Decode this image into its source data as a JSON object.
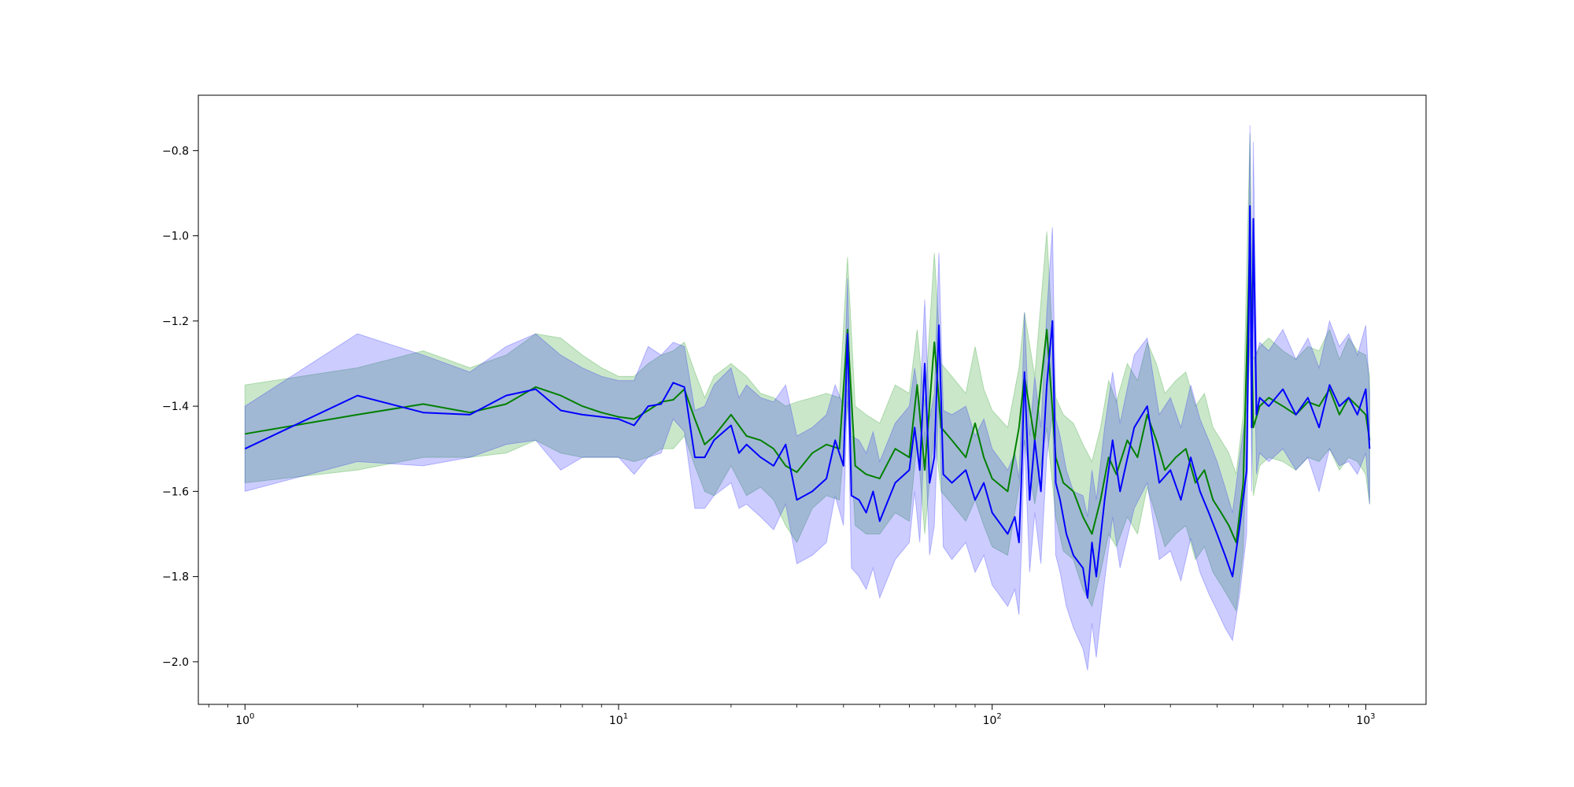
{
  "chart_data": {
    "type": "line",
    "title": "",
    "xlabel": "",
    "ylabel": "",
    "xscale": "log",
    "xlim": [
      0.75,
      1450
    ],
    "ylim": [
      -2.1,
      -0.67
    ],
    "grid": false,
    "legend": "none",
    "x_ticks": [
      {
        "base": "10",
        "exp": "0",
        "value": 1
      },
      {
        "base": "10",
        "exp": "1",
        "value": 10
      },
      {
        "base": "10",
        "exp": "2",
        "value": 100
      },
      {
        "base": "10",
        "exp": "3",
        "value": 1000
      }
    ],
    "y_ticks": [
      {
        "label": "−0.8",
        "value": -0.8
      },
      {
        "label": "−1.0",
        "value": -1.0
      },
      {
        "label": "−1.2",
        "value": -1.2
      },
      {
        "label": "−1.4",
        "value": -1.4
      },
      {
        "label": "−1.6",
        "value": -1.6
      },
      {
        "label": "−1.8",
        "value": -1.8
      },
      {
        "label": "−2.0",
        "value": -2.0
      }
    ],
    "series": [
      {
        "color": "#008000",
        "band_color": "#2ca02c",
        "band_opacity": 0.25,
        "x": [
          1,
          2,
          3,
          4,
          5,
          6,
          7,
          8,
          9,
          10,
          11,
          12,
          13,
          14,
          15,
          16,
          17,
          18,
          20,
          22,
          24,
          26,
          28,
          30,
          33,
          36,
          39,
          41,
          43,
          46,
          50,
          55,
          60,
          63,
          66,
          70,
          73,
          78,
          85,
          90,
          95,
          100,
          110,
          118,
          122,
          130,
          140,
          148,
          155,
          165,
          175,
          185,
          195,
          205,
          215,
          230,
          245,
          260,
          275,
          290,
          310,
          330,
          350,
          370,
          390,
          410,
          430,
          450,
          470,
          490,
          500,
          520,
          550,
          600,
          650,
          700,
          750,
          800,
          850,
          900,
          950,
          1000,
          1024
        ],
        "y": [
          -1.465,
          -1.42,
          -1.395,
          -1.415,
          -1.395,
          -1.355,
          -1.375,
          -1.4,
          -1.415,
          -1.425,
          -1.43,
          -1.41,
          -1.39,
          -1.385,
          -1.36,
          -1.43,
          -1.49,
          -1.47,
          -1.42,
          -1.47,
          -1.48,
          -1.5,
          -1.54,
          -1.555,
          -1.51,
          -1.49,
          -1.5,
          -1.22,
          -1.54,
          -1.56,
          -1.57,
          -1.5,
          -1.52,
          -1.35,
          -1.55,
          -1.25,
          -1.45,
          -1.48,
          -1.52,
          -1.44,
          -1.52,
          -1.57,
          -1.6,
          -1.45,
          -1.33,
          -1.48,
          -1.22,
          -1.52,
          -1.58,
          -1.6,
          -1.66,
          -1.7,
          -1.62,
          -1.52,
          -1.56,
          -1.48,
          -1.52,
          -1.42,
          -1.48,
          -1.55,
          -1.52,
          -1.5,
          -1.58,
          -1.55,
          -1.62,
          -1.65,
          -1.68,
          -1.72,
          -1.58,
          -1.0,
          -1.45,
          -1.4,
          -1.38,
          -1.4,
          -1.42,
          -1.39,
          -1.4,
          -1.36,
          -1.42,
          -1.38,
          -1.4,
          -1.42,
          -1.48
        ],
        "y_upper": [
          -1.35,
          -1.31,
          -1.27,
          -1.31,
          -1.28,
          -1.23,
          -1.24,
          -1.28,
          -1.31,
          -1.33,
          -1.33,
          -1.3,
          -1.28,
          -1.27,
          -1.25,
          -1.32,
          -1.38,
          -1.33,
          -1.3,
          -1.33,
          -1.37,
          -1.38,
          -1.4,
          -1.39,
          -1.38,
          -1.37,
          -1.38,
          -1.05,
          -1.4,
          -1.42,
          -1.44,
          -1.35,
          -1.37,
          -1.22,
          -1.4,
          -1.04,
          -1.3,
          -1.33,
          -1.37,
          -1.26,
          -1.36,
          -1.41,
          -1.45,
          -1.31,
          -1.18,
          -1.33,
          -0.99,
          -1.38,
          -1.42,
          -1.44,
          -1.49,
          -1.53,
          -1.45,
          -1.34,
          -1.39,
          -1.3,
          -1.34,
          -1.25,
          -1.3,
          -1.37,
          -1.34,
          -1.32,
          -1.4,
          -1.37,
          -1.45,
          -1.48,
          -1.51,
          -1.56,
          -1.42,
          -0.76,
          -1.29,
          -1.26,
          -1.24,
          -1.27,
          -1.29,
          -1.26,
          -1.27,
          -1.22,
          -1.29,
          -1.24,
          -1.27,
          -1.28,
          -1.33
        ],
        "y_lower": [
          -1.58,
          -1.55,
          -1.52,
          -1.52,
          -1.51,
          -1.48,
          -1.51,
          -1.52,
          -1.52,
          -1.52,
          -1.53,
          -1.52,
          -1.5,
          -1.5,
          -1.47,
          -1.54,
          -1.6,
          -1.61,
          -1.54,
          -1.61,
          -1.59,
          -1.62,
          -1.68,
          -1.72,
          -1.64,
          -1.61,
          -1.62,
          -1.39,
          -1.68,
          -1.7,
          -1.7,
          -1.65,
          -1.67,
          -1.48,
          -1.7,
          -1.46,
          -1.6,
          -1.63,
          -1.67,
          -1.62,
          -1.68,
          -1.73,
          -1.75,
          -1.59,
          -1.48,
          -1.63,
          -1.45,
          -1.66,
          -1.74,
          -1.76,
          -1.83,
          -1.87,
          -1.79,
          -1.7,
          -1.73,
          -1.66,
          -1.7,
          -1.59,
          -1.66,
          -1.73,
          -1.7,
          -1.68,
          -1.76,
          -1.73,
          -1.79,
          -1.82,
          -1.85,
          -1.88,
          -1.74,
          -1.24,
          -1.61,
          -1.54,
          -1.52,
          -1.53,
          -1.55,
          -1.52,
          -1.53,
          -1.5,
          -1.55,
          -1.52,
          -1.53,
          -1.56,
          -1.63
        ]
      },
      {
        "color": "#0000ff",
        "band_color": "#0000ff",
        "band_opacity": 0.2,
        "x": [
          1,
          2,
          3,
          4,
          5,
          6,
          7,
          8,
          9,
          10,
          11,
          12,
          13,
          14,
          15,
          16,
          17,
          18,
          20,
          21,
          22,
          24,
          26,
          28,
          30,
          33,
          36,
          38,
          40,
          41,
          42,
          44,
          46,
          48,
          50,
          55,
          60,
          62,
          64,
          66,
          68,
          70,
          72,
          74,
          78,
          85,
          90,
          95,
          100,
          110,
          115,
          118,
          120,
          122,
          126,
          130,
          135,
          140,
          145,
          148,
          152,
          158,
          165,
          175,
          180,
          185,
          190,
          200,
          210,
          220,
          240,
          260,
          280,
          300,
          320,
          340,
          360,
          380,
          400,
          420,
          440,
          460,
          480,
          490,
          495,
          500,
          510,
          520,
          550,
          600,
          650,
          700,
          750,
          800,
          850,
          900,
          950,
          1000,
          1024
        ],
        "y": [
          -1.5,
          -1.375,
          -1.415,
          -1.42,
          -1.375,
          -1.36,
          -1.41,
          -1.42,
          -1.425,
          -1.43,
          -1.445,
          -1.4,
          -1.395,
          -1.345,
          -1.355,
          -1.52,
          -1.52,
          -1.48,
          -1.445,
          -1.51,
          -1.49,
          -1.52,
          -1.54,
          -1.49,
          -1.62,
          -1.6,
          -1.57,
          -1.48,
          -1.54,
          -1.23,
          -1.61,
          -1.62,
          -1.65,
          -1.6,
          -1.67,
          -1.58,
          -1.55,
          -1.45,
          -1.55,
          -1.3,
          -1.58,
          -1.52,
          -1.21,
          -1.56,
          -1.58,
          -1.55,
          -1.62,
          -1.58,
          -1.65,
          -1.7,
          -1.66,
          -1.72,
          -1.55,
          -1.32,
          -1.62,
          -1.48,
          -1.6,
          -1.35,
          -1.2,
          -1.58,
          -1.62,
          -1.7,
          -1.75,
          -1.78,
          -1.85,
          -1.72,
          -1.8,
          -1.62,
          -1.48,
          -1.6,
          -1.45,
          -1.4,
          -1.58,
          -1.55,
          -1.62,
          -1.52,
          -1.6,
          -1.65,
          -1.7,
          -1.75,
          -1.8,
          -1.68,
          -1.55,
          -0.93,
          -1.45,
          -0.96,
          -1.42,
          -1.38,
          -1.4,
          -1.36,
          -1.42,
          -1.38,
          -1.45,
          -1.35,
          -1.4,
          -1.38,
          -1.42,
          -1.36,
          -1.5
        ],
        "y_upper": [
          -1.4,
          -1.23,
          -1.28,
          -1.32,
          -1.26,
          -1.23,
          -1.28,
          -1.31,
          -1.33,
          -1.34,
          -1.34,
          -1.26,
          -1.28,
          -1.25,
          -1.26,
          -1.41,
          -1.4,
          -1.35,
          -1.31,
          -1.38,
          -1.35,
          -1.38,
          -1.39,
          -1.35,
          -1.47,
          -1.45,
          -1.42,
          -1.35,
          -1.4,
          -1.1,
          -1.47,
          -1.48,
          -1.51,
          -1.46,
          -1.53,
          -1.44,
          -1.4,
          -1.31,
          -1.4,
          -1.15,
          -1.43,
          -1.37,
          -1.04,
          -1.41,
          -1.42,
          -1.4,
          -1.47,
          -1.43,
          -1.5,
          -1.55,
          -1.51,
          -1.57,
          -1.4,
          -1.18,
          -1.47,
          -1.33,
          -1.45,
          -1.18,
          -0.98,
          -1.43,
          -1.47,
          -1.55,
          -1.6,
          -1.61,
          -1.66,
          -1.55,
          -1.62,
          -1.45,
          -1.32,
          -1.44,
          -1.28,
          -1.24,
          -1.42,
          -1.38,
          -1.45,
          -1.35,
          -1.43,
          -1.48,
          -1.53,
          -1.59,
          -1.65,
          -1.52,
          -1.4,
          -0.74,
          -1.3,
          -0.78,
          -1.28,
          -1.25,
          -1.27,
          -1.22,
          -1.29,
          -1.24,
          -1.31,
          -1.2,
          -1.26,
          -1.23,
          -1.28,
          -1.21,
          -1.37
        ],
        "y_lower": [
          -1.6,
          -1.53,
          -1.54,
          -1.52,
          -1.49,
          -1.48,
          -1.55,
          -1.52,
          -1.52,
          -1.52,
          -1.56,
          -1.52,
          -1.51,
          -1.43,
          -1.46,
          -1.64,
          -1.64,
          -1.61,
          -1.58,
          -1.64,
          -1.63,
          -1.66,
          -1.69,
          -1.63,
          -1.77,
          -1.75,
          -1.72,
          -1.61,
          -1.68,
          -1.36,
          -1.78,
          -1.8,
          -1.83,
          -1.78,
          -1.85,
          -1.76,
          -1.72,
          -1.6,
          -1.72,
          -1.46,
          -1.75,
          -1.68,
          -1.38,
          -1.73,
          -1.76,
          -1.72,
          -1.79,
          -1.75,
          -1.82,
          -1.87,
          -1.83,
          -1.89,
          -1.72,
          -1.48,
          -1.79,
          -1.65,
          -1.77,
          -1.52,
          -1.42,
          -1.75,
          -1.79,
          -1.87,
          -1.92,
          -1.97,
          -2.02,
          -1.91,
          -1.99,
          -1.81,
          -1.66,
          -1.78,
          -1.64,
          -1.58,
          -1.76,
          -1.74,
          -1.81,
          -1.71,
          -1.79,
          -1.84,
          -1.88,
          -1.92,
          -1.95,
          -1.84,
          -1.7,
          -1.12,
          -1.6,
          -1.14,
          -1.56,
          -1.51,
          -1.53,
          -1.5,
          -1.55,
          -1.52,
          -1.6,
          -1.5,
          -1.54,
          -1.53,
          -1.56,
          -1.51,
          -1.63
        ]
      }
    ]
  }
}
